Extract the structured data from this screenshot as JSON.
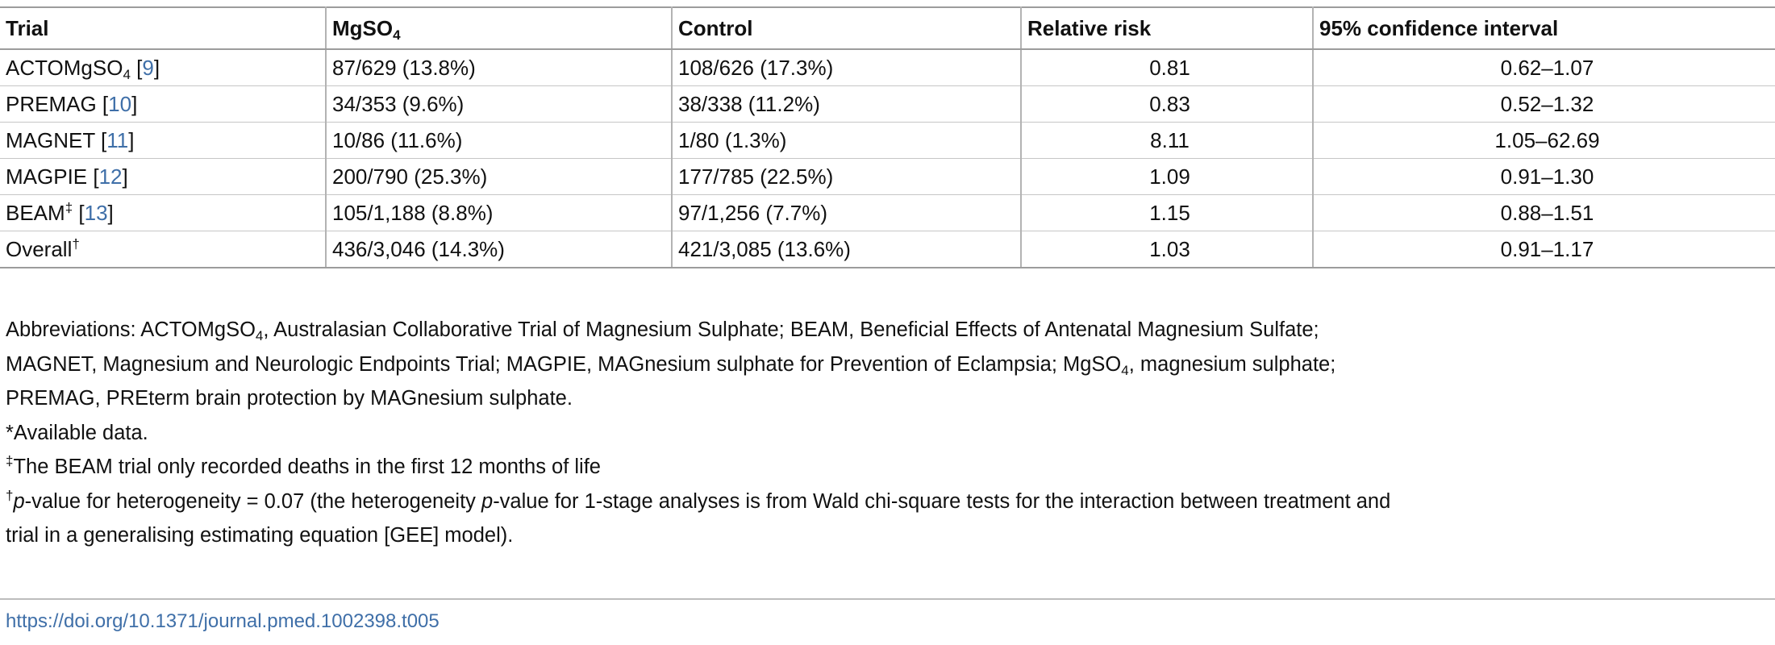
{
  "table": {
    "headers": {
      "trial": "Trial",
      "mgso4_base": "MgSO",
      "mgso4_sub": "4",
      "control": "Control",
      "rr": "Relative risk",
      "ci": "95% confidence interval"
    },
    "rows": [
      {
        "name": "ACTOMgSO",
        "sub": "4",
        "sup": "",
        "ref": "9",
        "mgso4": "87/629 (13.8%)",
        "control": "108/626 (17.3%)",
        "rr": "0.81",
        "ci": "0.62–1.07"
      },
      {
        "name": "PREMAG",
        "sub": "",
        "sup": "",
        "ref": "10",
        "mgso4": "34/353 (9.6%)",
        "control": "38/338 (11.2%)",
        "rr": "0.83",
        "ci": "0.52–1.32"
      },
      {
        "name": "MAGNET",
        "sub": "",
        "sup": "",
        "ref": "11",
        "mgso4": "10/86 (11.6%)",
        "control": "1/80 (1.3%)",
        "rr": "8.11",
        "ci": "1.05–62.69"
      },
      {
        "name": "MAGPIE",
        "sub": "",
        "sup": "",
        "ref": "12",
        "mgso4": "200/790 (25.3%)",
        "control": "177/785 (22.5%)",
        "rr": "1.09",
        "ci": "0.91–1.30"
      },
      {
        "name": "BEAM",
        "sub": "",
        "sup": "‡",
        "ref": "13",
        "mgso4": "105/1,188 (8.8%)",
        "control": "97/1,256 (7.7%)",
        "rr": "1.15",
        "ci": "0.88–1.51"
      },
      {
        "name": "Overall",
        "sub": "",
        "sup": "†",
        "ref": "",
        "mgso4": "436/3,046 (14.3%)",
        "control": "421/3,085 (13.6%)",
        "rr": "1.03",
        "ci": "0.91–1.17"
      }
    ]
  },
  "footnotes": {
    "abbrev_1a": "Abbreviations: ACTOMgSO",
    "abbrev_1a_sub": "4",
    "abbrev_1b": ", Australasian Collaborative Trial of Magnesium Sulphate; BEAM, Beneficial Effects of Antenatal Magnesium Sulfate;",
    "abbrev_2a": "MAGNET, Magnesium and Neurologic Endpoints Trial; MAGPIE, MAGnesium sulphate for Prevention of Eclampsia; MgSO",
    "abbrev_2a_sub": "4",
    "abbrev_2b": ", magnesium sulphate;",
    "abbrev_3": "PREMAG, PREterm brain protection by MAGnesium sulphate.",
    "available": "*Available data.",
    "beam_mark": "‡",
    "beam_text": "The BEAM trial only recorded deaths in the first 12 months of life",
    "dagger_mark": "†",
    "p_italic_1": "p",
    "het_a": "-value for heterogeneity = 0.07 (the heterogeneity ",
    "p_italic_2": "p",
    "het_b": "-value for 1-stage analyses is from Wald chi-square tests for the interaction between treatment and",
    "het_c": "trial in a generalising estimating equation [GEE] model)."
  },
  "doi": "https://doi.org/10.1371/journal.pmed.1002398.t005"
}
